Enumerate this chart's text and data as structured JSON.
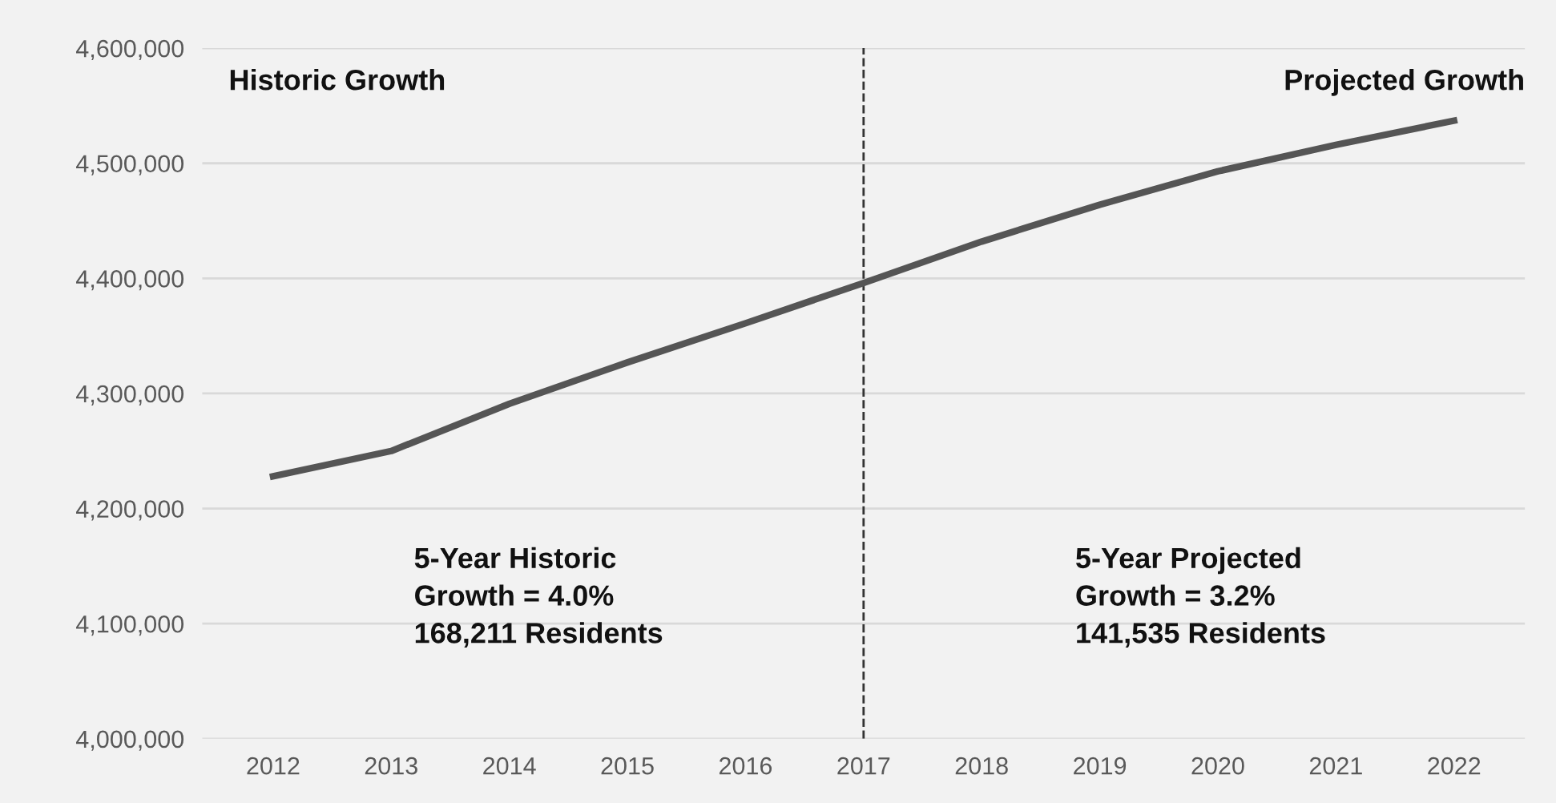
{
  "chart_data": {
    "type": "line",
    "categories": [
      "2012",
      "2013",
      "2014",
      "2015",
      "2016",
      "2017",
      "2018",
      "2019",
      "2020",
      "2021",
      "2022"
    ],
    "series": [
      {
        "color": "#555555",
        "values": [
          4228000,
          4250000,
          4291000,
          4327000,
          4361000,
          4396000,
          4432000,
          4464000,
          4493000,
          4516000,
          4537000
        ]
      }
    ],
    "ylim": [
      4000000,
      4600000
    ],
    "yticks": [
      {
        "value": 4000000,
        "label": "4,000,000"
      },
      {
        "value": 4100000,
        "label": "4,100,000"
      },
      {
        "value": 4200000,
        "label": "4,200,000"
      },
      {
        "value": 4300000,
        "label": "4,300,000"
      },
      {
        "value": 4400000,
        "label": "4,400,000"
      },
      {
        "value": 4500000,
        "label": "4,500,000"
      },
      {
        "value": 4600000,
        "label": "4,600,000"
      }
    ],
    "grid": "y",
    "ref_lines": [
      {
        "axis": "x",
        "value": "2017",
        "color": "#333333",
        "line_style": "dashed"
      }
    ],
    "annotations": [
      "Historic Growth",
      "Projected Growth",
      "5-Year Historic\nGrowth = 4.0%\n168,211 Residents",
      "5-Year Projected\nGrowth = 3.2%\n141,535 Residents"
    ]
  }
}
